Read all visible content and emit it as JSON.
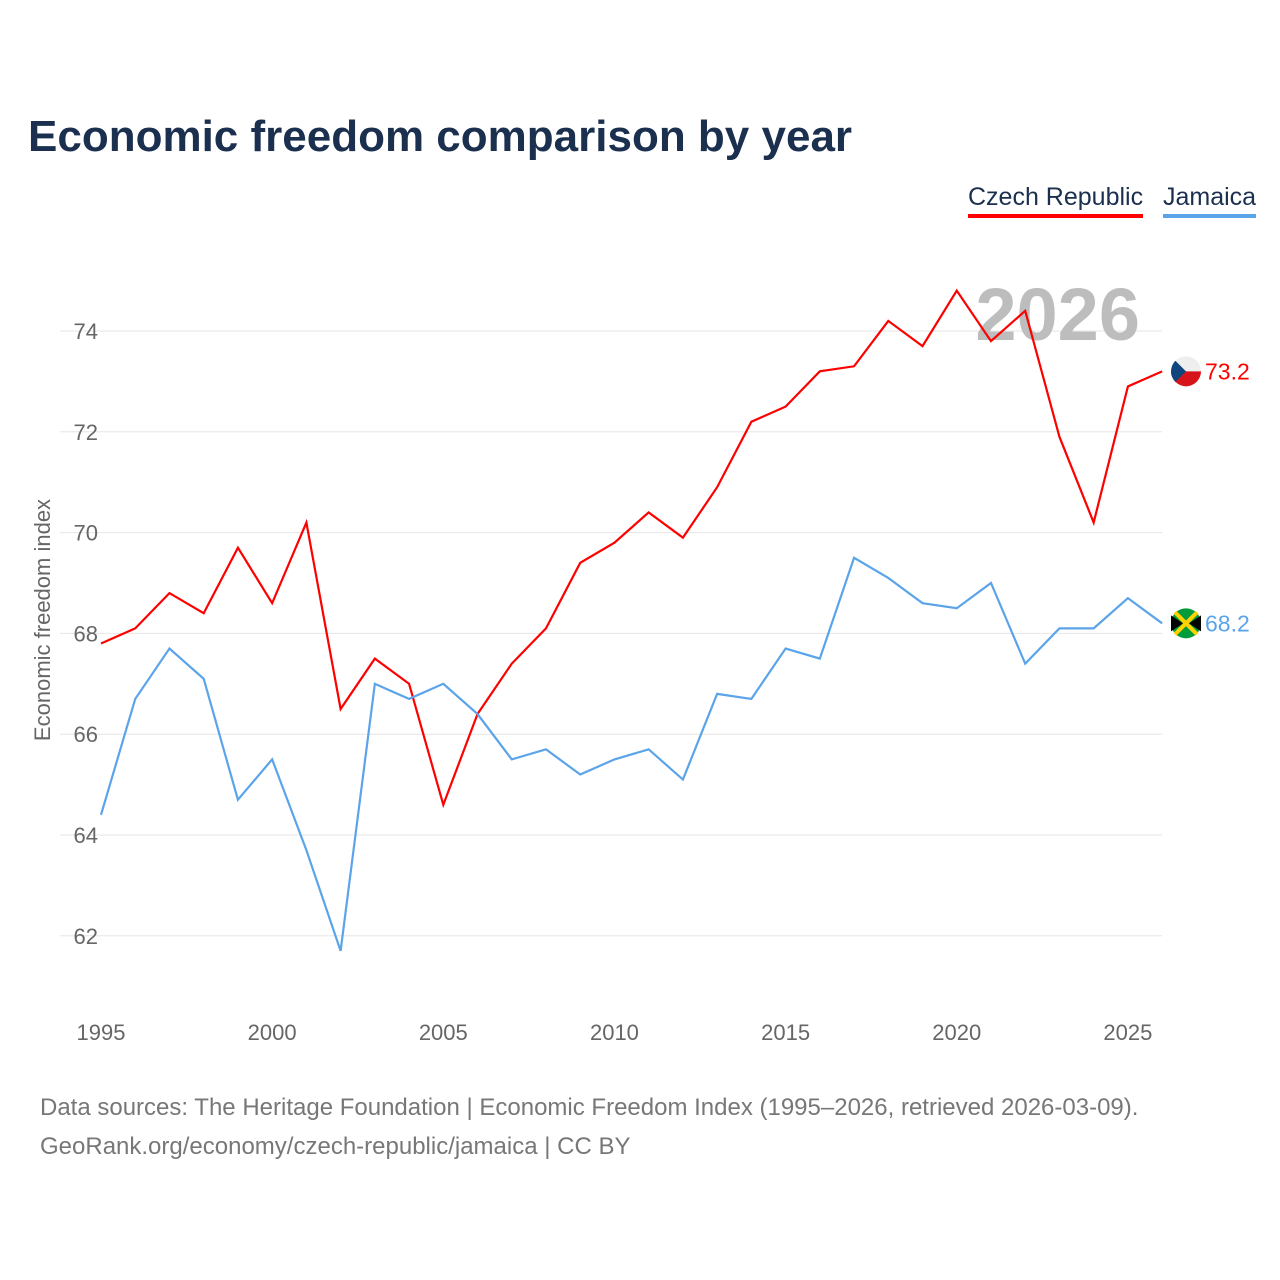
{
  "chart_data": {
    "type": "line",
    "title": "Economic freedom comparison by year",
    "ylabel": "Economic freedom index",
    "xlabel": "",
    "ylim": [
      60.8,
      75.6
    ],
    "xlim": [
      1995,
      2026
    ],
    "yticks": [
      62,
      64,
      66,
      68,
      70,
      72,
      74
    ],
    "xticks": [
      1995,
      2000,
      2005,
      2010,
      2015,
      2020,
      2025
    ],
    "grid": true,
    "legend_placement": "top-right",
    "year_watermark": "2026",
    "x": [
      1995,
      1996,
      1997,
      1998,
      1999,
      2000,
      2001,
      2002,
      2003,
      2004,
      2005,
      2006,
      2007,
      2008,
      2009,
      2010,
      2011,
      2012,
      2013,
      2014,
      2015,
      2016,
      2017,
      2018,
      2019,
      2020,
      2021,
      2022,
      2023,
      2024,
      2025,
      2026
    ],
    "series": [
      {
        "name": "Czech Republic",
        "color": "#ff0000",
        "end_label": "73.2",
        "values": [
          67.8,
          68.1,
          68.8,
          68.4,
          69.7,
          68.6,
          70.2,
          66.5,
          67.5,
          67.0,
          64.6,
          66.4,
          67.4,
          68.1,
          69.4,
          69.8,
          70.4,
          69.9,
          70.9,
          72.2,
          72.5,
          73.2,
          73.3,
          74.2,
          73.7,
          74.8,
          73.8,
          74.4,
          71.9,
          70.2,
          72.9,
          73.2
        ]
      },
      {
        "name": "Jamaica",
        "color": "#5ba4ea",
        "end_label": "68.2",
        "values": [
          64.4,
          66.7,
          67.7,
          67.1,
          64.7,
          65.5,
          63.7,
          61.7,
          67.0,
          66.7,
          67.0,
          66.4,
          65.5,
          65.7,
          65.2,
          65.5,
          65.7,
          65.1,
          66.8,
          66.7,
          67.7,
          67.5,
          69.5,
          69.1,
          68.6,
          68.5,
          69.0,
          67.4,
          68.1,
          68.1,
          68.7,
          68.2
        ]
      }
    ]
  },
  "source": {
    "line1": "Data sources: The Heritage Foundation | Economic Freedom Index (1995–2026, retrieved 2026-03-09).",
    "line2": "GeoRank.org/economy/czech-republic/jamaica | CC BY"
  }
}
